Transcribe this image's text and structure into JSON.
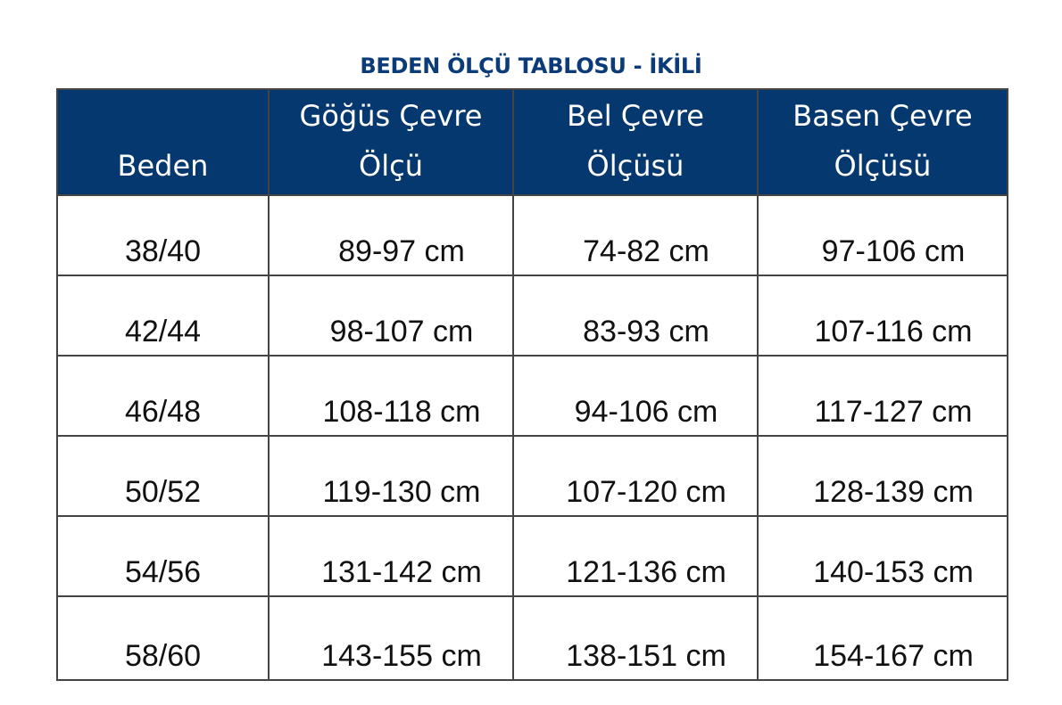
{
  "title": "BEDEN ÖLÇÜ TABLOSU - İKİLİ",
  "colors": {
    "header_bg": "#063870",
    "title": "#0b3b78"
  },
  "table": {
    "headers": [
      {
        "line1": "",
        "line2": "Beden"
      },
      {
        "line1": "Göğüs Çevre",
        "line2": "Ölçü"
      },
      {
        "line1": "Bel Çevre",
        "line2": "Ölçüsü"
      },
      {
        "line1": "Basen Çevre",
        "line2": "Ölçüsü"
      }
    ],
    "rows": [
      [
        "38/40",
        "89-97 cm",
        "74-82 cm",
        "97-106 cm"
      ],
      [
        "42/44",
        "98-107 cm",
        "83-93 cm",
        "107-116 cm"
      ],
      [
        "46/48",
        "108-118 cm",
        "94-106 cm",
        "117-127 cm"
      ],
      [
        "50/52",
        "119-130 cm",
        "107-120 cm",
        "128-139 cm"
      ],
      [
        "54/56",
        "131-142 cm",
        "121-136 cm",
        "140-153 cm"
      ],
      [
        "58/60",
        "143-155 cm",
        "138-151 cm",
        "154-167 cm"
      ]
    ]
  }
}
